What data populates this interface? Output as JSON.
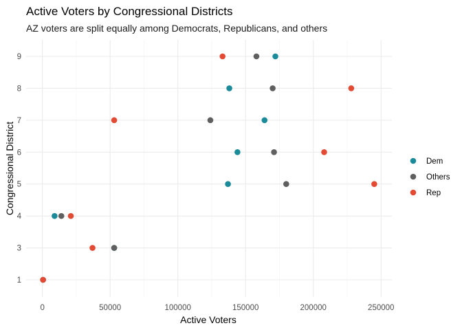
{
  "chart_data": {
    "type": "scatter",
    "title": "Active Voters by Congressional Districts",
    "subtitle": "AZ voters are split equally among Democrats, Republicans, and others",
    "xlabel": "Active Voters",
    "ylabel": "Congressional District",
    "xlim": [
      -12000,
      258000
    ],
    "x_ticks": [
      0,
      50000,
      100000,
      150000,
      200000,
      250000
    ],
    "x_tick_labels": [
      "0",
      "50000",
      "100000",
      "150000",
      "200000",
      "250000"
    ],
    "categories": [
      "1",
      "3",
      "4",
      "5",
      "6",
      "7",
      "8",
      "9"
    ],
    "grid": true,
    "legend_position": "right",
    "series": [
      {
        "name": "Dem",
        "color": "#1b8a99",
        "points": [
          {
            "district": "1",
            "x": 500
          },
          {
            "district": "3",
            "x": 53000
          },
          {
            "district": "4",
            "x": 9000
          },
          {
            "district": "5",
            "x": 137000
          },
          {
            "district": "6",
            "x": 144000
          },
          {
            "district": "7",
            "x": 164000
          },
          {
            "district": "8",
            "x": 138000
          },
          {
            "district": "9",
            "x": 172000
          }
        ]
      },
      {
        "name": "Others",
        "color": "#5f5f5f",
        "points": [
          {
            "district": "1",
            "x": 500
          },
          {
            "district": "3",
            "x": 53000
          },
          {
            "district": "4",
            "x": 14000
          },
          {
            "district": "5",
            "x": 180000
          },
          {
            "district": "6",
            "x": 171000
          },
          {
            "district": "7",
            "x": 124000
          },
          {
            "district": "8",
            "x": 170000
          },
          {
            "district": "9",
            "x": 158000
          }
        ]
      },
      {
        "name": "Rep",
        "color": "#e24a33",
        "points": [
          {
            "district": "1",
            "x": 500
          },
          {
            "district": "3",
            "x": 37000
          },
          {
            "district": "4",
            "x": 21000
          },
          {
            "district": "5",
            "x": 245000
          },
          {
            "district": "6",
            "x": 208000
          },
          {
            "district": "7",
            "x": 53000
          },
          {
            "district": "8",
            "x": 228000
          },
          {
            "district": "9",
            "x": 133000
          }
        ]
      }
    ]
  }
}
